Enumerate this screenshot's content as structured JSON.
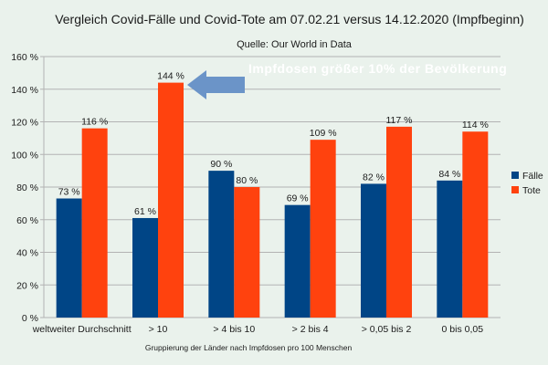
{
  "chart_data": {
    "type": "bar",
    "title": "Vergleich Covid-Fälle und Covid-Tote am 07.02.21 versus 14.12.2020 (Impfbeginn)",
    "subtitle": "Quelle: Our World in Data",
    "xlabel": "Gruppierung der Länder nach Impfdosen pro 100 Menschen",
    "ylabel": "",
    "ylim": [
      0,
      160
    ],
    "yticks": [
      0,
      20,
      40,
      60,
      80,
      100,
      120,
      140,
      160
    ],
    "ytick_suffix": " %",
    "grid": true,
    "legend_position": "right",
    "categories": [
      "weltweiter Durchschnitt",
      "> 10",
      "> 4 bis 10",
      "> 2 bis 4",
      "> 0,05 bis 2",
      "0 bis 0,05"
    ],
    "series": [
      {
        "name": "Fälle",
        "color": "#004586",
        "values": [
          73,
          61,
          90,
          69,
          82,
          84
        ],
        "labels": [
          "73 %",
          "61 %",
          "90 %",
          "69 %",
          "82 %",
          "84 %"
        ]
      },
      {
        "name": "Tote",
        "color": "#ff420e",
        "values": [
          116,
          144,
          80,
          109,
          117,
          114
        ],
        "labels": [
          "116 %",
          "144 %",
          "80 %",
          "109 %",
          "117 %",
          "114 %"
        ]
      }
    ],
    "annotation": {
      "text": "Impfdosen größer 10% der Bevölkerung",
      "points_to": "> 10"
    }
  },
  "colors": {
    "background": "#eaf2ec",
    "grid": "#b3b3b3",
    "arrow": "#6b94c8",
    "annotation_text": "#ffffff"
  }
}
